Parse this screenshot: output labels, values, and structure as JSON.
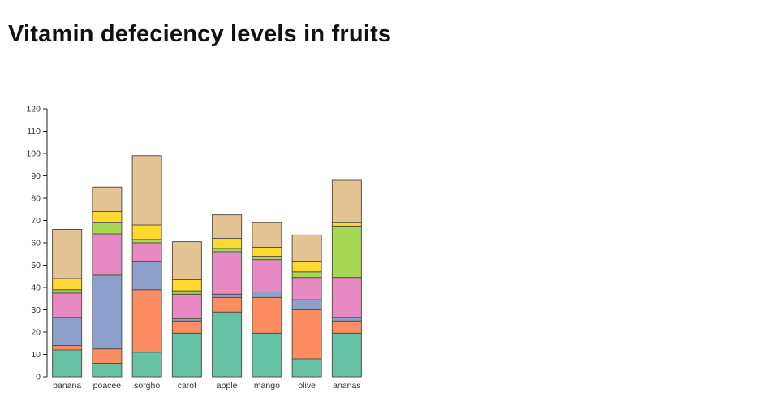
{
  "page": {
    "title": "Vitamin defeciency levels in fruits"
  },
  "chart_data": {
    "type": "bar",
    "stacked": true,
    "title": "Vitamin defeciency levels in fruits",
    "xlabel": "",
    "ylabel": "",
    "ylim": [
      0,
      120
    ],
    "ytick_step": 10,
    "grid": false,
    "legend": "none",
    "categories": [
      "banana",
      "poacee",
      "sorgho",
      "carot",
      "apple",
      "mango",
      "olive",
      "ananas"
    ],
    "series": [
      {
        "name": "teal-segment",
        "color": "#66c2a5",
        "values": [
          12,
          6,
          11,
          19.5,
          29,
          19.5,
          8,
          19.5
        ]
      },
      {
        "name": "orange-segment",
        "color": "#fc8d62",
        "values": [
          2,
          6.5,
          28,
          5.5,
          6.5,
          16,
          22,
          5.5
        ]
      },
      {
        "name": "purple-segment",
        "color": "#8da0cb",
        "values": [
          12.5,
          33,
          12.5,
          1,
          1.5,
          2.5,
          4.5,
          1.5
        ]
      },
      {
        "name": "pink-segment",
        "color": "#e78ac3",
        "values": [
          11,
          18.5,
          8.5,
          11,
          19,
          14.5,
          10,
          18
        ]
      },
      {
        "name": "green-segment",
        "color": "#a6d854",
        "values": [
          1.5,
          5,
          1.5,
          1.5,
          1.5,
          1.5,
          2.5,
          23
        ]
      },
      {
        "name": "yellow-segment",
        "color": "#ffd92f",
        "values": [
          5,
          5,
          6.5,
          5,
          4.5,
          4,
          4.5,
          1.5
        ]
      },
      {
        "name": "tan-segment",
        "color": "#e5c494",
        "values": [
          22,
          11,
          31,
          17,
          10.5,
          11,
          12,
          19
        ]
      }
    ],
    "totals": [
      66,
      85,
      99,
      60.5,
      72.5,
      69,
      63.5,
      88
    ],
    "segment_stroke_color": "#5a5248",
    "axis_color": "#222222",
    "tick_label_color": "#333333"
  }
}
